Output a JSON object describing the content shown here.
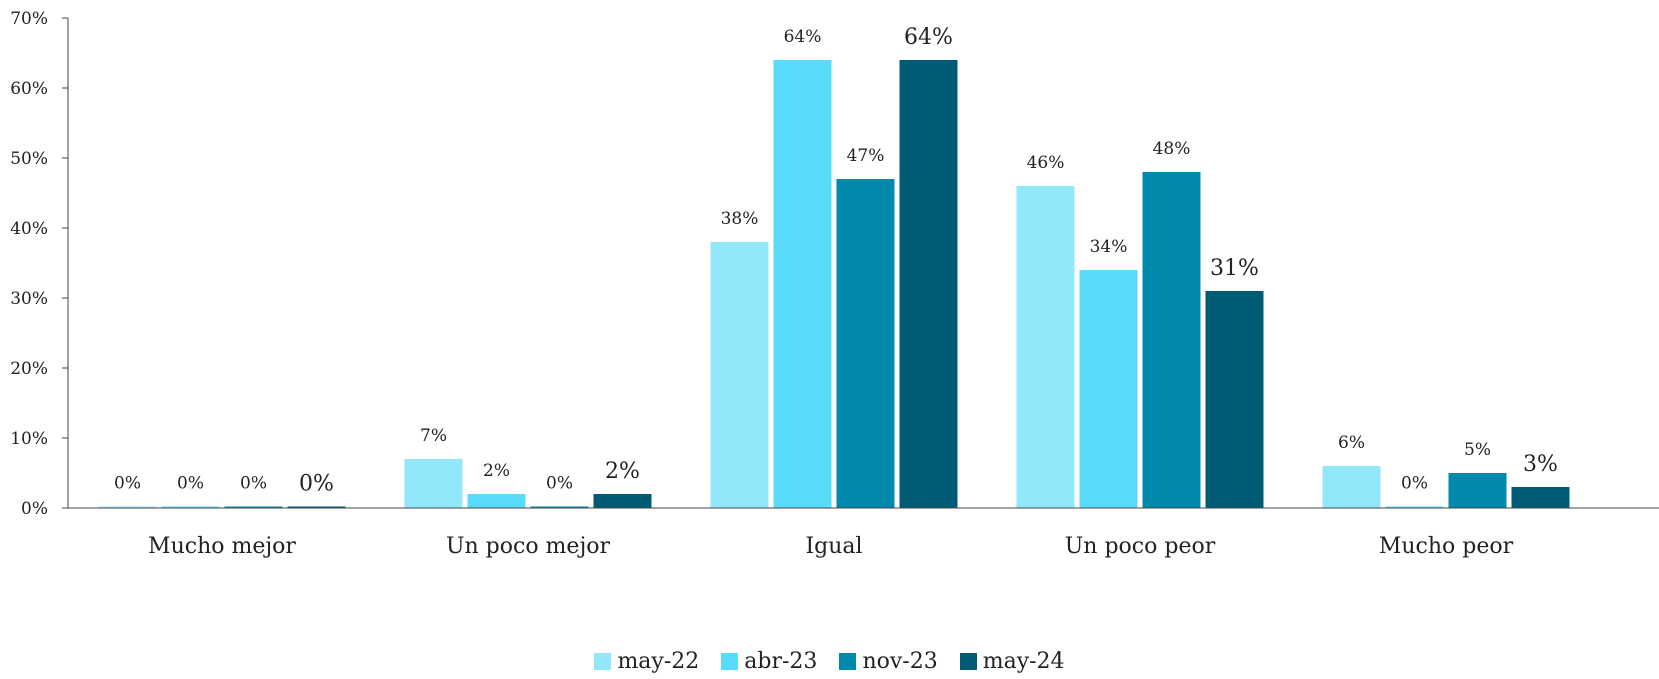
{
  "chart_data": {
    "type": "bar",
    "categories": [
      "Mucho mejor",
      "Un poco mejor",
      "Igual",
      "Un poco peor",
      "Mucho peor"
    ],
    "series": [
      {
        "name": "may-22",
        "color": "#93e7fb",
        "values": [
          0,
          7,
          38,
          46,
          6
        ],
        "labels": [
          "0%",
          "7%",
          "38%",
          "46%",
          "6%"
        ]
      },
      {
        "name": "abr-23",
        "color": "#59dcfc",
        "values": [
          0,
          2,
          64,
          34,
          0
        ],
        "labels": [
          "0%",
          "2%",
          "64%",
          "34%",
          "0%"
        ]
      },
      {
        "name": "nov-23",
        "color": "#0088ad",
        "values": [
          0,
          0,
          47,
          48,
          5
        ],
        "labels": [
          "0%",
          "0%",
          "47%",
          "48%",
          "5%"
        ]
      },
      {
        "name": "may-24",
        "color": "#005c74",
        "values": [
          0,
          2,
          64,
          31,
          3
        ],
        "labels": [
          "0%",
          "2%",
          "64%",
          "31%",
          "3%"
        ]
      }
    ],
    "yticks": [
      "0%",
      "10%",
      "20%",
      "30%",
      "40%",
      "50%",
      "60%",
      "70%"
    ],
    "ylim": [
      0,
      70
    ],
    "grid": false,
    "legend_position": "bottom-center"
  }
}
